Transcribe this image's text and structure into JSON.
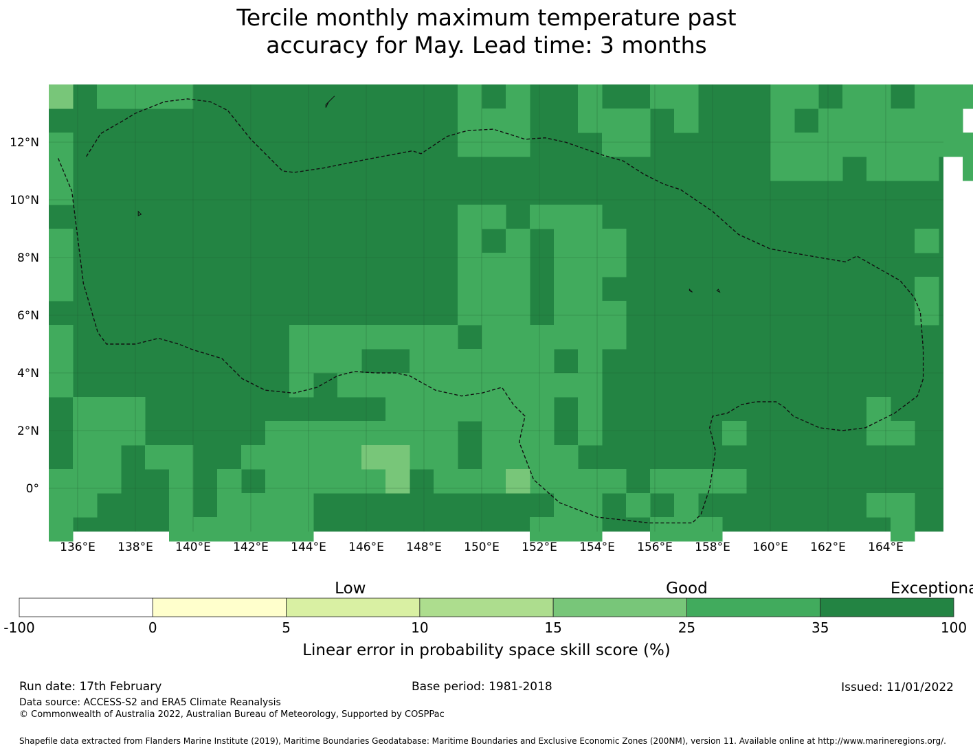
{
  "title_line1": "Tercile monthly maximum temperature past",
  "title_line2": "accuracy for May. Lead time: 3 months",
  "map": {
    "lon_range": [
      135,
      166
    ],
    "lat_range": [
      -1.5,
      14.0
    ],
    "lon_ticks": [
      {
        "value": 136,
        "label": "136°E"
      },
      {
        "value": 138,
        "label": "138°E"
      },
      {
        "value": 140,
        "label": "140°E"
      },
      {
        "value": 142,
        "label": "142°E"
      },
      {
        "value": 144,
        "label": "144°E"
      },
      {
        "value": 146,
        "label": "146°E"
      },
      {
        "value": 148,
        "label": "148°E"
      },
      {
        "value": 150,
        "label": "150°E"
      },
      {
        "value": 152,
        "label": "152°E"
      },
      {
        "value": 154,
        "label": "154°E"
      },
      {
        "value": 156,
        "label": "156°E"
      },
      {
        "value": 158,
        "label": "158°E"
      },
      {
        "value": 160,
        "label": "160°E"
      },
      {
        "value": 162,
        "label": "162°E"
      },
      {
        "value": 164,
        "label": "164°E"
      }
    ],
    "lat_ticks": [
      {
        "value": 12,
        "label": "12°N"
      },
      {
        "value": 10,
        "label": "10°N"
      },
      {
        "value": 8,
        "label": "8°N"
      },
      {
        "value": 6,
        "label": "6°N"
      },
      {
        "value": 4,
        "label": "4°N"
      },
      {
        "value": 2,
        "label": "2°N"
      },
      {
        "value": 0,
        "label": "0°"
      }
    ],
    "eez_boundary": [
      [
        136.3,
        11.5
      ],
      [
        136.8,
        12.3
      ],
      [
        137.5,
        12.7
      ],
      [
        138.0,
        13.0
      ],
      [
        139.0,
        13.4
      ],
      [
        139.8,
        13.5
      ],
      [
        140.6,
        13.4
      ],
      [
        141.2,
        13.1
      ],
      [
        142.0,
        12.1
      ],
      [
        143.1,
        11.0
      ],
      [
        143.5,
        10.95
      ],
      [
        144.5,
        11.1
      ],
      [
        146.0,
        11.4
      ],
      [
        147.6,
        11.7
      ],
      [
        147.9,
        11.6
      ],
      [
        148.8,
        12.2
      ],
      [
        149.5,
        12.4
      ],
      [
        150.4,
        12.45
      ],
      [
        151.2,
        12.2
      ],
      [
        151.5,
        12.1
      ],
      [
        152.2,
        12.15
      ],
      [
        152.9,
        12.0
      ],
      [
        154.2,
        11.55
      ],
      [
        154.9,
        11.35
      ],
      [
        155.6,
        10.9
      ],
      [
        156.3,
        10.55
      ],
      [
        156.9,
        10.35
      ],
      [
        158.0,
        9.6
      ],
      [
        158.9,
        8.8
      ],
      [
        160.0,
        8.3
      ],
      [
        161.7,
        8.0
      ],
      [
        162.6,
        7.85
      ],
      [
        163.0,
        8.05
      ],
      [
        164.5,
        7.2
      ],
      [
        165.0,
        6.6
      ],
      [
        165.2,
        6.1
      ],
      [
        165.3,
        4.8
      ],
      [
        165.3,
        3.8
      ],
      [
        165.1,
        3.2
      ],
      [
        164.3,
        2.6
      ],
      [
        163.3,
        2.1
      ],
      [
        162.5,
        2.0
      ],
      [
        161.7,
        2.1
      ],
      [
        160.8,
        2.5
      ],
      [
        160.5,
        2.8
      ],
      [
        160.2,
        3.0
      ],
      [
        159.5,
        3.0
      ],
      [
        159.0,
        2.9
      ],
      [
        158.5,
        2.6
      ],
      [
        158.0,
        2.5
      ],
      [
        157.9,
        2.1
      ],
      [
        158.1,
        1.3
      ],
      [
        157.9,
        0.0
      ],
      [
        157.6,
        -0.9
      ],
      [
        157.3,
        -1.2
      ],
      [
        155.8,
        -1.2
      ],
      [
        154.0,
        -1.0
      ],
      [
        152.7,
        -0.5
      ],
      [
        151.8,
        0.3
      ],
      [
        151.3,
        1.6
      ],
      [
        151.5,
        2.5
      ],
      [
        151.1,
        2.9
      ],
      [
        150.7,
        3.5
      ],
      [
        150.0,
        3.3
      ],
      [
        149.3,
        3.2
      ],
      [
        148.4,
        3.4
      ],
      [
        147.5,
        3.9
      ],
      [
        147.0,
        4.0
      ],
      [
        146.3,
        4.0
      ],
      [
        145.6,
        4.05
      ],
      [
        145.0,
        3.9
      ],
      [
        144.3,
        3.5
      ],
      [
        143.5,
        3.3
      ],
      [
        142.5,
        3.4
      ],
      [
        141.7,
        3.8
      ],
      [
        141.0,
        4.5
      ],
      [
        140.0,
        4.8
      ],
      [
        139.5,
        5.0
      ],
      [
        138.8,
        5.2
      ],
      [
        138.0,
        5.0
      ],
      [
        137.0,
        5.0
      ],
      [
        136.7,
        5.4
      ],
      [
        136.2,
        7.1
      ],
      [
        135.9,
        9.5
      ],
      [
        135.8,
        10.3
      ],
      [
        135.3,
        11.5
      ]
    ],
    "islands": [
      [
        [
          144.6,
          13.3
        ],
        [
          144.8,
          13.5
        ],
        [
          144.9,
          13.6
        ],
        [
          144.7,
          13.4
        ],
        [
          144.6,
          13.2
        ]
      ],
      [
        [
          138.1,
          9.6
        ],
        [
          138.2,
          9.5
        ],
        [
          138.1,
          9.45
        ]
      ],
      [
        [
          157.2,
          6.9
        ],
        [
          157.3,
          6.8
        ],
        [
          157.2,
          6.85
        ]
      ],
      [
        [
          158.2,
          6.9
        ],
        [
          158.25,
          6.8
        ],
        [
          158.15,
          6.85
        ]
      ]
    ]
  },
  "colorbar": {
    "categories": [
      {
        "label": "Low",
        "at": 2.5
      },
      {
        "label": "Good",
        "at": 5.0
      },
      {
        "label": "Exceptional",
        "at": 7.0
      }
    ],
    "bins": [
      {
        "from": "-100",
        "to": "0",
        "color": "#ffffff"
      },
      {
        "from": "0",
        "to": "5",
        "color": "#ffffcc"
      },
      {
        "from": "5",
        "to": "10",
        "color": "#d9f0a3"
      },
      {
        "from": "10",
        "to": "15",
        "color": "#addd8e"
      },
      {
        "from": "15",
        "to": "25",
        "color": "#78c679"
      },
      {
        "from": "25",
        "to": "35",
        "color": "#41ab5d"
      },
      {
        "from": "35",
        "to": "100",
        "color": "#238443"
      }
    ],
    "tick_labels": [
      "-100",
      "0",
      "5",
      "10",
      "15",
      "25",
      "35",
      "100"
    ],
    "label": "Linear error in probability space skill score (%)"
  },
  "footer": {
    "run_date": "Run date: 17th February",
    "base_period": "Base period: 1981-2018",
    "issued": "Issued: 11/01/2022",
    "data_source": "Data source: ACCESS-S2 and ERA5 Climate Reanalysis",
    "copyright": "© Commonwealth of Australia 2022, Australian Bureau of Meteorology, Supported by COSPPac",
    "shapefile": "Shapefile data extracted from Flanders Marine Institute (2019), Maritime Boundaries Geodatabase: Maritime Boundaries and Exclusive Economic Zones (200NM), version 11. Available online at http://www.marineregions.org/."
  }
}
